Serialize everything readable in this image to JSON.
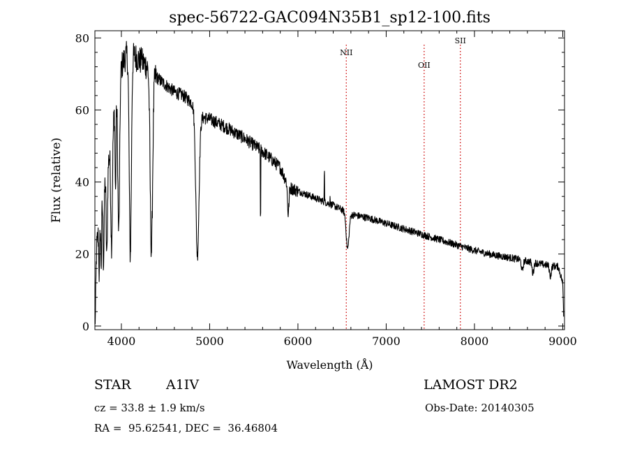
{
  "chart_data": {
    "type": "line",
    "title": "spec-56722-GAC094N35B1_sp12-100.fits",
    "xlabel": "Wavelength (Å)",
    "ylabel": "Flux (relative)",
    "xlim": [
      3700,
      9020
    ],
    "ylim": [
      -1,
      82
    ],
    "xticks": [
      4000,
      5000,
      6000,
      7000,
      8000,
      9000
    ],
    "yticks": [
      0,
      20,
      40,
      60,
      80
    ],
    "grid": false,
    "line_color": "#000000",
    "line_markers_color": "#cc0000",
    "emission_lines": [
      {
        "label": "NII",
        "wavelength": 6548
      },
      {
        "label": "OII",
        "wavelength": 7430
      },
      {
        "label": "SII",
        "wavelength": 7840
      }
    ],
    "continuum": [
      [
        3700,
        12
      ],
      [
        3720,
        22
      ],
      [
        3760,
        30
      ],
      [
        3800,
        38
      ],
      [
        3850,
        45
      ],
      [
        3900,
        55
      ],
      [
        3950,
        65
      ],
      [
        4000,
        72
      ],
      [
        4050,
        75
      ],
      [
        4100,
        76
      ],
      [
        4150,
        75
      ],
      [
        4200,
        74
      ],
      [
        4300,
        72
      ],
      [
        4400,
        69
      ],
      [
        4500,
        67
      ],
      [
        4600,
        65
      ],
      [
        4700,
        64
      ],
      [
        4800,
        62
      ],
      [
        4900,
        58
      ],
      [
        5000,
        57.5
      ],
      [
        5200,
        55
      ],
      [
        5400,
        52
      ],
      [
        5600,
        48.5
      ],
      [
        5800,
        44
      ],
      [
        5900,
        38.5
      ],
      [
        6000,
        37.5
      ],
      [
        6200,
        35.5
      ],
      [
        6400,
        33.5
      ],
      [
        6600,
        31
      ],
      [
        6800,
        30
      ],
      [
        7000,
        28.5
      ],
      [
        7200,
        27
      ],
      [
        7400,
        25.5
      ],
      [
        7600,
        24
      ],
      [
        7800,
        22.5
      ],
      [
        8000,
        21
      ],
      [
        8200,
        19.8
      ],
      [
        8400,
        19
      ],
      [
        8600,
        18
      ],
      [
        8800,
        17
      ],
      [
        8950,
        16.5
      ],
      [
        9000,
        12
      ],
      [
        9010,
        3
      ]
    ],
    "absorption_lines": [
      {
        "wavelength": 3705,
        "depth": 12,
        "width": 6
      },
      {
        "wavelength": 3750,
        "depth": 14,
        "width": 5
      },
      {
        "wavelength": 3771,
        "depth": 15,
        "width": 5
      },
      {
        "wavelength": 3798,
        "depth": 20,
        "width": 6
      },
      {
        "wavelength": 3835,
        "depth": 24,
        "width": 7
      },
      {
        "wavelength": 3889,
        "depth": 30,
        "width": 9
      },
      {
        "wavelength": 3934,
        "depth": 25,
        "width": 5
      },
      {
        "wavelength": 3970,
        "depth": 42,
        "width": 10
      },
      {
        "wavelength": 4101,
        "depth": 56,
        "width": 12
      },
      {
        "wavelength": 4340,
        "depth": 50,
        "width": 14
      },
      {
        "wavelength": 4861,
        "depth": 40,
        "width": 18
      },
      {
        "wavelength": 5890,
        "depth": 8,
        "width": 8
      },
      {
        "wavelength": 6563,
        "depth": 10,
        "width": 16
      },
      {
        "wavelength": 8542,
        "depth": 3,
        "width": 10
      },
      {
        "wavelength": 8662,
        "depth": 3,
        "width": 10
      },
      {
        "wavelength": 8860,
        "depth": 3,
        "width": 10
      }
    ],
    "narrow_spikes": [
      {
        "wavelength": 5577,
        "value": -19
      },
      {
        "wavelength": 6300,
        "value": 8
      },
      {
        "wavelength": 6364,
        "value": 3
      },
      {
        "wavelength": 4230,
        "value": 3
      }
    ],
    "noise_amplitude_blue": 4,
    "noise_amplitude_red": 1
  },
  "info": {
    "class_label": "STAR",
    "subclass": "A1IV",
    "survey": "LAMOST DR2",
    "cz": "cz = 33.8 ± 1.9 km/s",
    "obs_date": "Obs-Date: 20140305",
    "coords": "RA =  95.62541, DEC =  36.46804"
  }
}
